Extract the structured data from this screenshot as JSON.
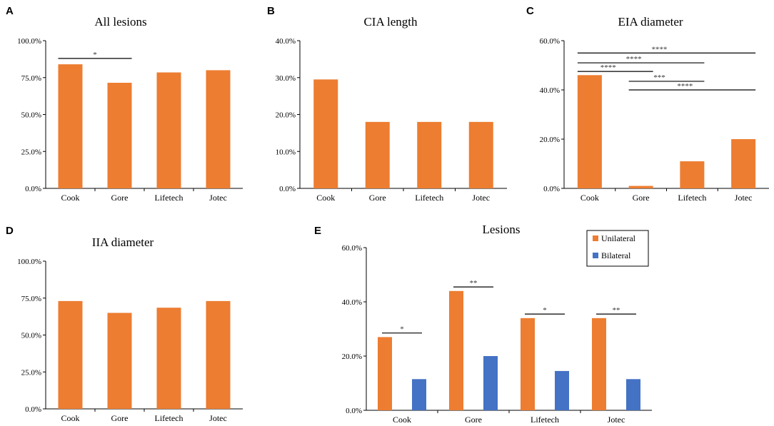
{
  "colors": {
    "unilateral": "#ED7D31",
    "bilateral": "#4472C4"
  },
  "chart_data": [
    {
      "panel": "A",
      "type": "bar",
      "title": "All lesions",
      "categories": [
        "Cook",
        "Gore",
        "Lifetech",
        "Jotec"
      ],
      "values": [
        84,
        71.5,
        78.5,
        80
      ],
      "ylim": [
        0,
        100
      ],
      "yticks": [
        "0.0%",
        "25.0%",
        "50.0%",
        "75.0%",
        "100.0%"
      ],
      "significance": [
        {
          "from": "Cook",
          "to": "Gore",
          "label": "*",
          "level": 88
        }
      ]
    },
    {
      "panel": "B",
      "type": "bar",
      "title": "CIA length",
      "categories": [
        "Cook",
        "Gore",
        "Lifetech",
        "Jotec"
      ],
      "values": [
        29.5,
        18,
        18,
        18
      ],
      "ylim": [
        0,
        40
      ],
      "yticks": [
        "0.0%",
        "10.0%",
        "20.0%",
        "30.0%",
        "40.0%"
      ],
      "significance": []
    },
    {
      "panel": "C",
      "type": "bar",
      "title": "EIA diameter",
      "categories": [
        "Cook",
        "Gore",
        "Lifetech",
        "Jotec"
      ],
      "values": [
        46,
        1,
        11,
        20
      ],
      "ylim": [
        0,
        60
      ],
      "yticks": [
        "0.0%",
        "20.0%",
        "40.0%",
        "60.0%"
      ],
      "significance": [
        {
          "from": "Cook",
          "to": "Jotec",
          "label": "****",
          "level": 55
        },
        {
          "from": "Cook",
          "to": "Lifetech",
          "label": "****",
          "level": 51
        },
        {
          "from": "Cook",
          "to": "Gore",
          "label": "****",
          "level": 47.5
        },
        {
          "from": "Gore",
          "to": "Lifetech",
          "label": "***",
          "level": 43.5
        },
        {
          "from": "Gore",
          "to": "Jotec",
          "label": "****",
          "level": 40
        }
      ]
    },
    {
      "panel": "D",
      "type": "bar",
      "title": "IIA diameter",
      "categories": [
        "Cook",
        "Gore",
        "Lifetech",
        "Jotec"
      ],
      "values": [
        73,
        65,
        68.5,
        73
      ],
      "ylim": [
        0,
        100
      ],
      "yticks": [
        "0.0%",
        "25.0%",
        "50.0%",
        "75.0%",
        "100.0%"
      ],
      "significance": []
    },
    {
      "panel": "E",
      "type": "bar",
      "title": "Lesions",
      "categories": [
        "Cook",
        "Gore",
        "Lifetech",
        "Jotec"
      ],
      "series": [
        {
          "name": "Unilateral",
          "values": [
            27,
            44,
            34,
            34
          ]
        },
        {
          "name": "Bilateral",
          "values": [
            11.5,
            20,
            14.5,
            11.5
          ]
        }
      ],
      "ylim": [
        0,
        60
      ],
      "yticks": [
        "0.0%",
        "20.0%",
        "40.0%",
        "60.0%"
      ],
      "legend_position": "top-right",
      "significance": [
        {
          "category": "Cook",
          "label": "*",
          "level": 28.5
        },
        {
          "category": "Gore",
          "label": "**",
          "level": 45.5
        },
        {
          "category": "Lifetech",
          "label": "*",
          "level": 35.5
        },
        {
          "category": "Jotec",
          "label": "**",
          "level": 35.5
        }
      ]
    }
  ]
}
